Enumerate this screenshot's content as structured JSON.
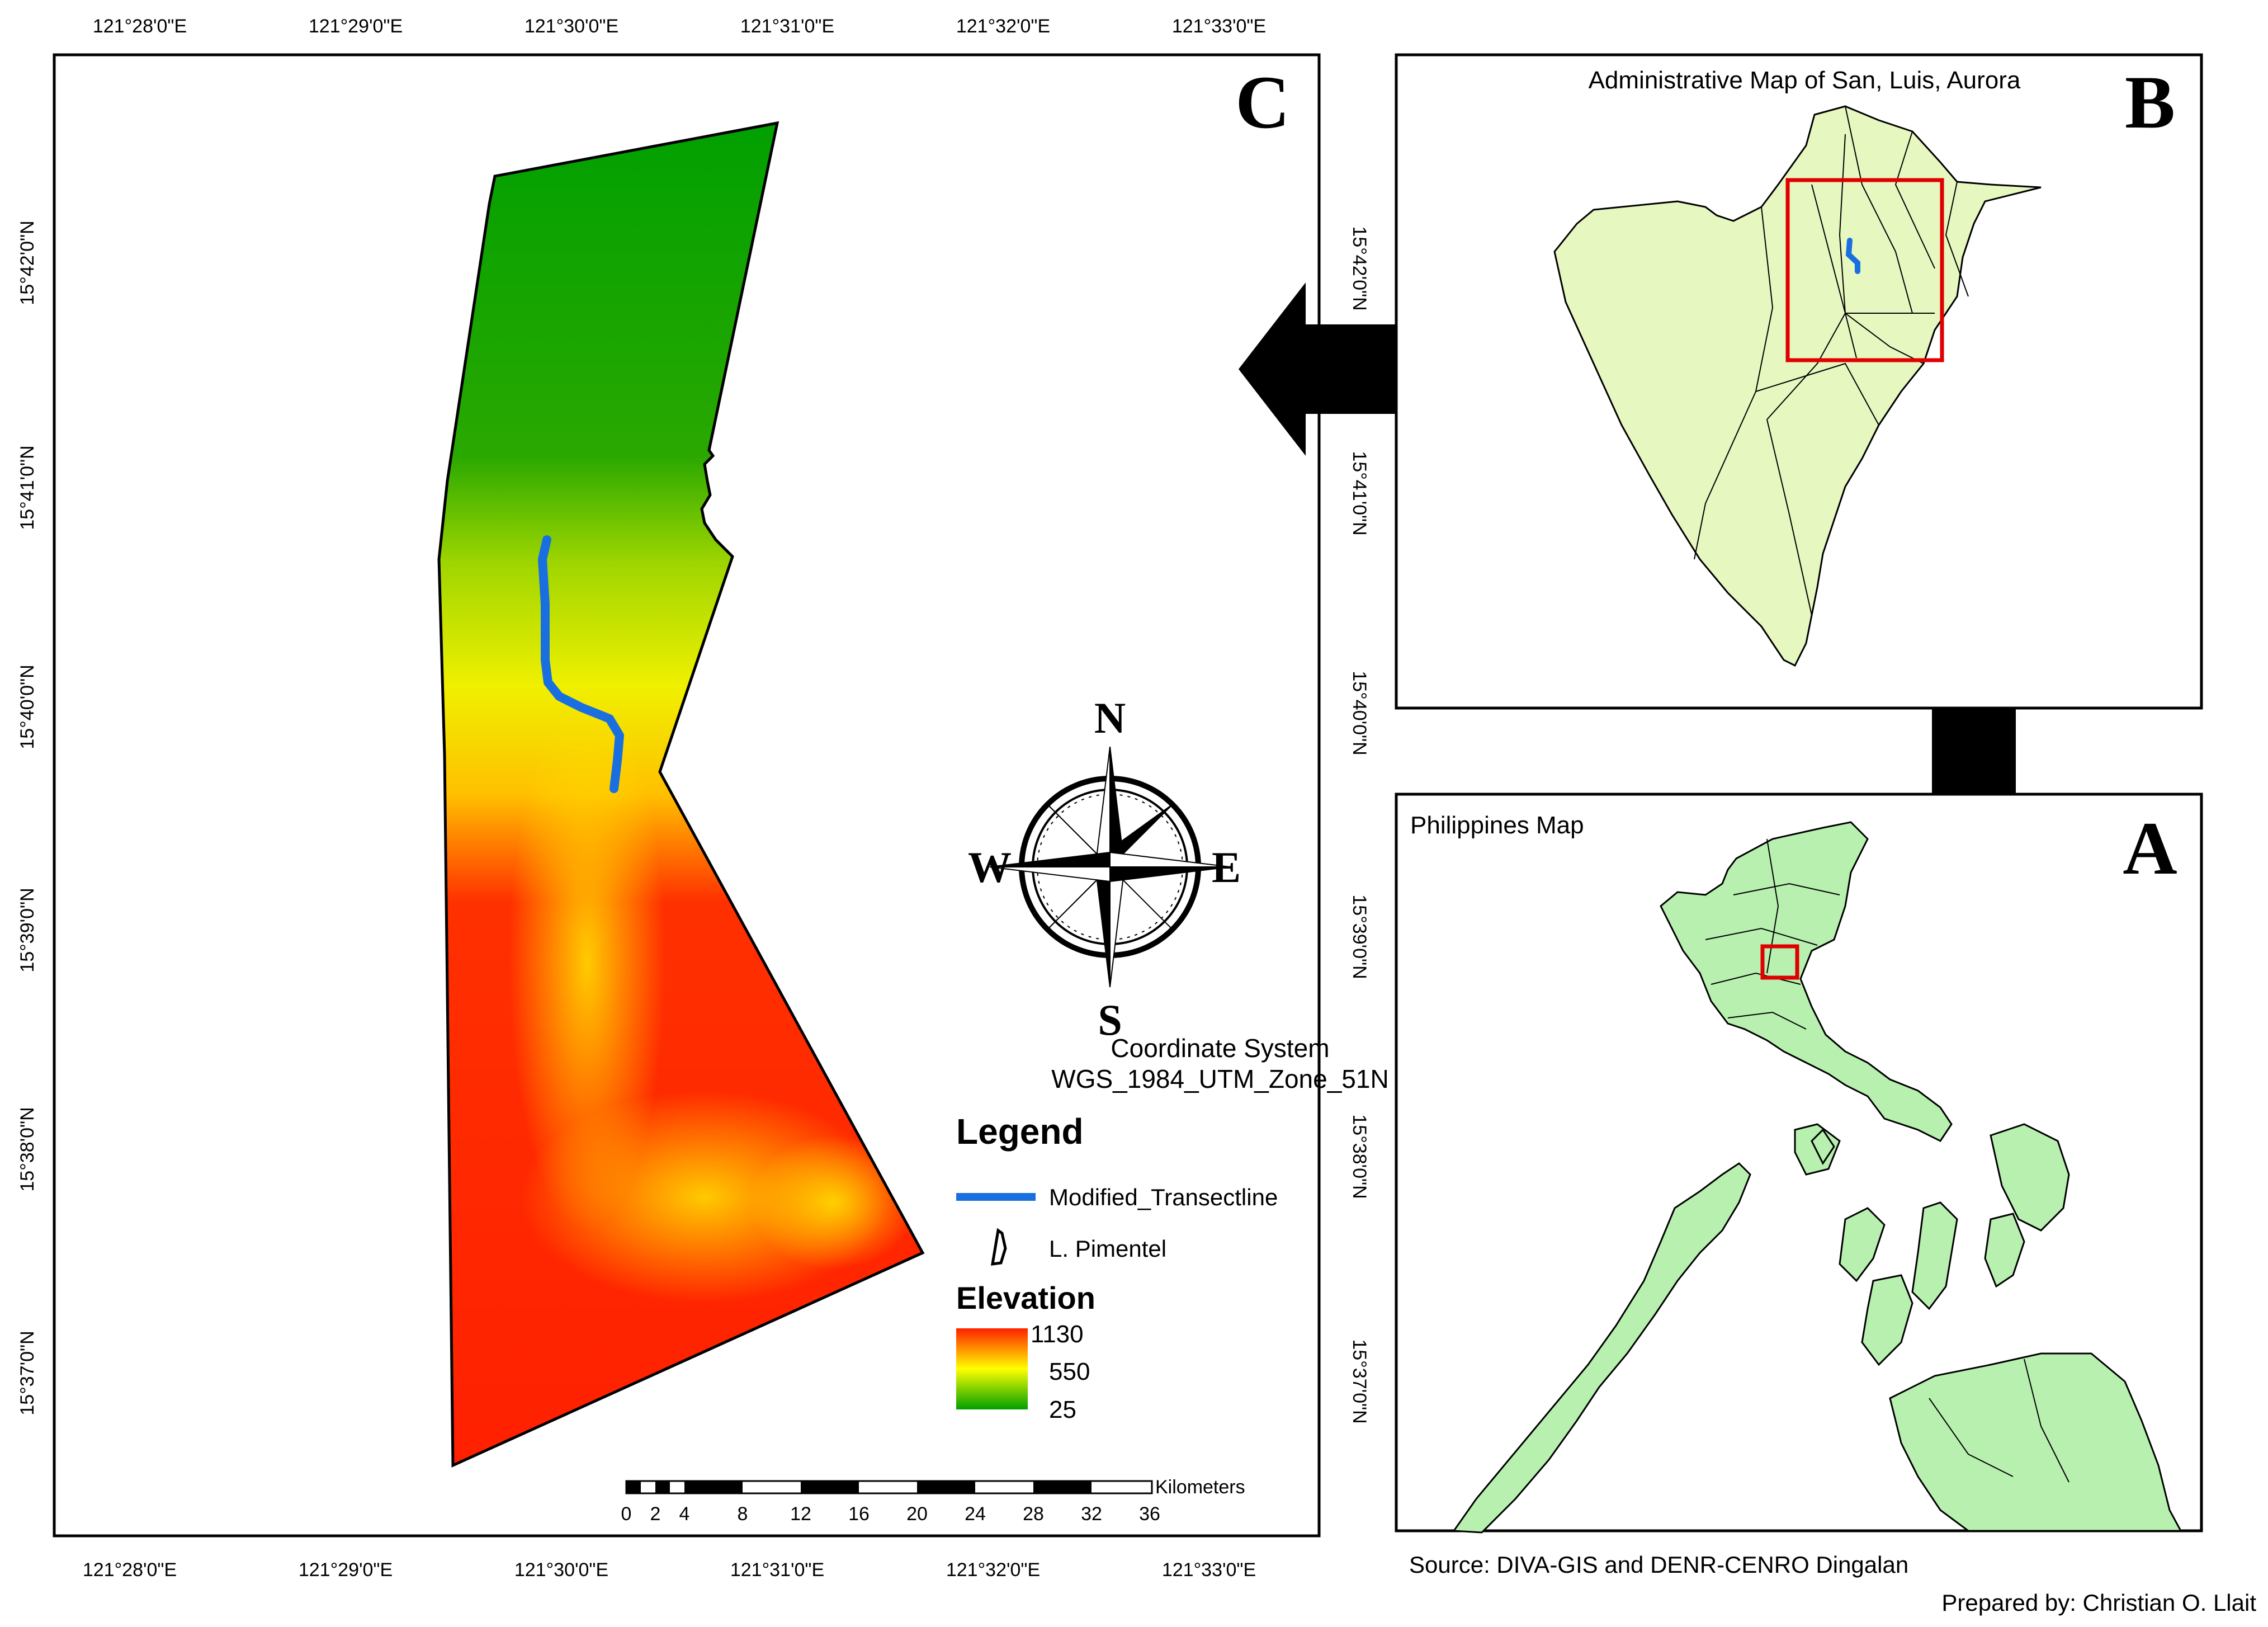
{
  "panel_c": {
    "letter": "C",
    "top_ticks": [
      "121°28'0\"E",
      "121°29'0\"E",
      "121°30'0\"E",
      "121°31'0\"E",
      "121°32'0\"E",
      "121°33'0\"E"
    ],
    "bottom_ticks": [
      "121°28'0\"E",
      "121°29'0\"E",
      "121°30'0\"E",
      "121°31'0\"E",
      "121°32'0\"E",
      "121°33'0\"E"
    ],
    "left_ticks": [
      "15°42'0\"N",
      "15°41'0\"N",
      "15°40'0\"N",
      "15°39'0\"N",
      "15°38'0\"N",
      "15°37'0\"N"
    ],
    "right_ticks": [
      "15°42'0\"N",
      "15°41'0\"N",
      "15°40'0\"N",
      "15°39'0\"N",
      "15°38'0\"N",
      "15°37'0\"N"
    ],
    "compass": {
      "n": "N",
      "s": "S",
      "e": "E",
      "w": "W"
    },
    "coordinate_system": {
      "line1": "Coordinate System",
      "line2": "WGS_1984_UTM_Zone_51N"
    },
    "legend": {
      "title": "Legend",
      "transect_label": "Modified_Transectline",
      "area_label": "L. Pimentel",
      "elevation_title": "Elevation",
      "elevation_max": "1130",
      "elevation_mid": "550",
      "elevation_min": "25",
      "colors": {
        "high": "#ff2000",
        "mid": "#ffff00",
        "low": "#00a000"
      }
    },
    "scale_bar": {
      "ticks": [
        "0",
        "2",
        "4",
        "8",
        "12",
        "16",
        "20",
        "24",
        "28",
        "32",
        "36"
      ],
      "unit": "Kilometers"
    },
    "transect_color": "#1a6fe0"
  },
  "panel_b": {
    "letter": "B",
    "title": "Administrative Map of San, Luis, Aurora",
    "fill": "#e6f7c0"
  },
  "panel_a": {
    "letter": "A",
    "title": "Philippines Map",
    "fill": "#b8f0b0"
  },
  "highlight_color": "#e00000",
  "source": "Source: DIVA-GIS and DENR-CENRO Dingalan",
  "prepared_by": "Prepared by: Christian O. Llait"
}
